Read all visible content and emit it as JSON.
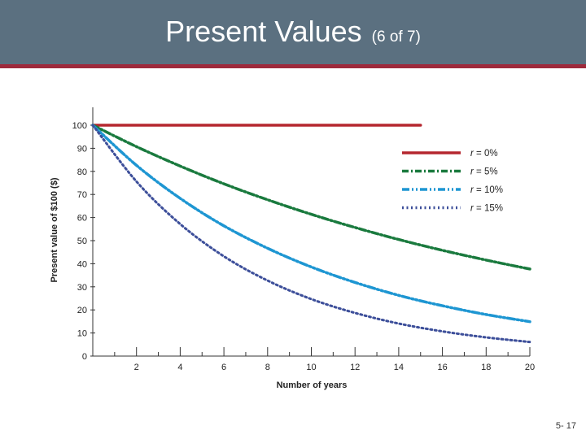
{
  "slide": {
    "title": "Present Values",
    "subtitle": "(6 of 7)",
    "page_number": "5- 17",
    "colors": {
      "header": "#5b7080",
      "header_rule": "#9e2a3c"
    }
  },
  "chart_data": {
    "type": "line",
    "title": "",
    "xlabel": "Number of years",
    "ylabel": "Present value of $100 ($)",
    "xlim": [
      0,
      20
    ],
    "ylim": [
      0,
      100
    ],
    "xticks": [
      2,
      4,
      6,
      8,
      10,
      12,
      14,
      16,
      18,
      20
    ],
    "yticks": [
      0,
      10,
      20,
      30,
      40,
      50,
      60,
      70,
      80,
      90,
      100
    ],
    "grid": false,
    "legend_position": "right",
    "x": [
      0,
      2,
      4,
      6,
      8,
      10,
      12,
      14,
      15,
      16,
      18,
      20
    ],
    "series": [
      {
        "name": "r = 0%",
        "color": "#b5272f",
        "dash": "solid",
        "points": [
          [
            0,
            100
          ],
          [
            15,
            100
          ]
        ]
      },
      {
        "name": "r = 5%",
        "color": "#1a7a3e",
        "dash": "dashdot",
        "points": [
          [
            0,
            100
          ],
          [
            2,
            90.7
          ],
          [
            4,
            82.3
          ],
          [
            6,
            74.6
          ],
          [
            8,
            67.7
          ],
          [
            10,
            61.4
          ],
          [
            12,
            55.7
          ],
          [
            14,
            50.5
          ],
          [
            16,
            45.8
          ],
          [
            18,
            41.6
          ],
          [
            20,
            37.7
          ]
        ]
      },
      {
        "name": "r = 10%",
        "color": "#1e96d2",
        "dash": "dashdotdot",
        "points": [
          [
            0,
            100
          ],
          [
            2,
            82.6
          ],
          [
            4,
            68.3
          ],
          [
            6,
            56.4
          ],
          [
            8,
            46.7
          ],
          [
            10,
            38.6
          ],
          [
            12,
            31.9
          ],
          [
            14,
            26.3
          ],
          [
            16,
            21.8
          ],
          [
            18,
            18.0
          ],
          [
            20,
            14.9
          ]
        ]
      },
      {
        "name": "r = 15%",
        "color": "#3d4f9a",
        "dash": "dotted",
        "points": [
          [
            0,
            100
          ],
          [
            2,
            75.6
          ],
          [
            4,
            57.2
          ],
          [
            6,
            43.2
          ],
          [
            8,
            32.7
          ],
          [
            10,
            24.7
          ],
          [
            12,
            18.7
          ],
          [
            14,
            14.1
          ],
          [
            16,
            10.7
          ],
          [
            18,
            8.1
          ],
          [
            20,
            6.1
          ]
        ]
      }
    ]
  }
}
